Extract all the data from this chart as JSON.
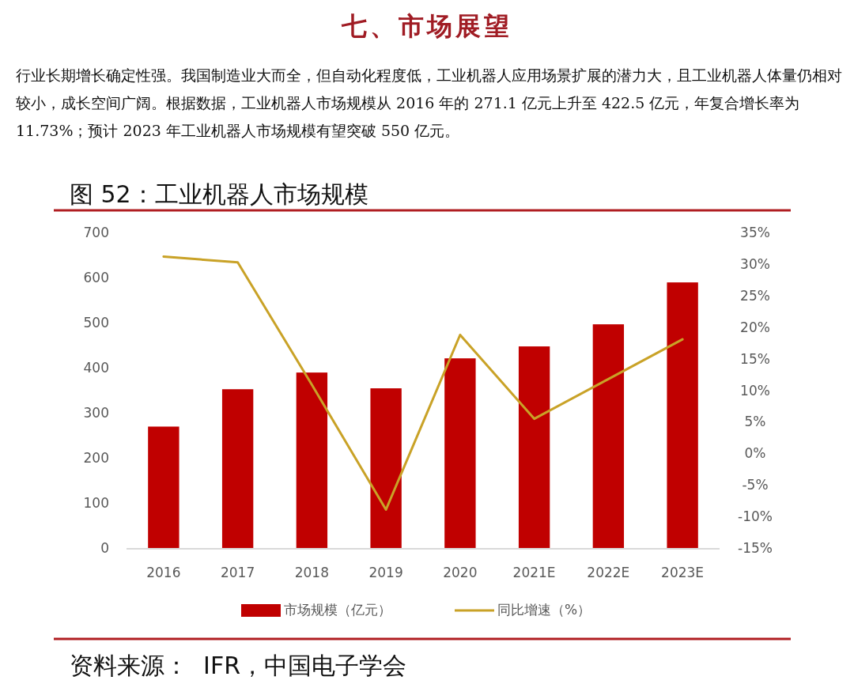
{
  "chart_data": {
    "type": "bar",
    "title": "七、市场展望",
    "subtitle": "行业长期增长确定性强。我国制造业大而全，但自动化程度低，工业机器人应用场景扩展的潜力大，且工业机器人体量仍相对较小，成长空间广阔。根据数据，工业机器人市场规模从 2016 年的 271.1 亿元上升至 422.5 亿元，年复合增长率为 11.73%；预计 2023 年工业机器人市场规模有望突破 550 亿元。",
    "annotations": [
      "图 52：工业机器人市场规模",
      "资料来源：  IFR，中国电子学会"
    ],
    "categories": [
      "2016",
      "2017",
      "2018",
      "2019",
      "2020",
      "2021E",
      "2022E",
      "2023E"
    ],
    "series": [
      {
        "name": "市场规模（亿元）",
        "color": "#c00000",
        "values": [
          271.1,
          354,
          391,
          356,
          422.5,
          449,
          498,
          591
        ]
      },
      {
        "name": "同比增速（%）",
        "type": "line",
        "axis": "y2",
        "color": "#c9a227",
        "values": [
          31.3,
          30.4,
          11,
          -8.8,
          18.9,
          5.6,
          11.9,
          18.2
        ]
      }
    ],
    "ylim": [
      0,
      700
    ],
    "yticks": [
      0,
      100,
      200,
      300,
      400,
      500,
      600,
      700
    ],
    "y2lim": [
      -15,
      35
    ],
    "y2ticks": [
      {
        "value": -15,
        "label": "-15%"
      },
      {
        "value": -10,
        "label": "-10%"
      },
      {
        "value": -5,
        "label": "-5%"
      },
      {
        "value": 0,
        "label": "0%"
      },
      {
        "value": 5,
        "label": "5%"
      },
      {
        "value": 10,
        "label": "10%"
      },
      {
        "value": 15,
        "label": "15%"
      },
      {
        "value": 20,
        "label": "20%"
      },
      {
        "value": 25,
        "label": "25%"
      },
      {
        "value": 30,
        "label": "30%"
      },
      {
        "value": 35,
        "label": "35%"
      }
    ],
    "grid": false,
    "legend": "bottom"
  }
}
